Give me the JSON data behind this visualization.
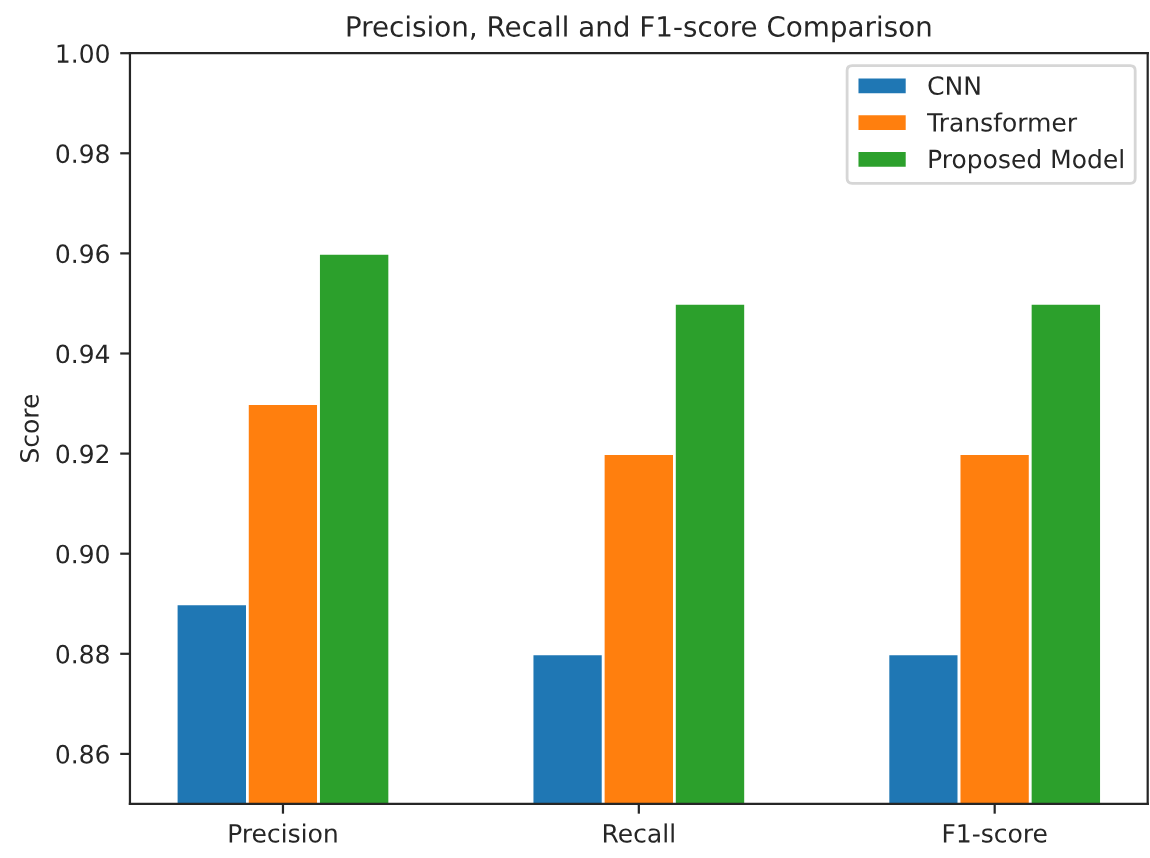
{
  "chart_data": {
    "type": "bar",
    "title": "Precision, Recall and F1-score Comparison",
    "ylabel": "Score",
    "categories": [
      "Precision",
      "Recall",
      "F1-score"
    ],
    "series": [
      {
        "name": "CNN",
        "color": "#1f77b4",
        "values": [
          0.89,
          0.88,
          0.88
        ]
      },
      {
        "name": "Transformer",
        "color": "#ff7f0e",
        "values": [
          0.93,
          0.92,
          0.92
        ]
      },
      {
        "name": "Proposed Model",
        "color": "#2ca02c",
        "values": [
          0.96,
          0.95,
          0.95
        ]
      }
    ],
    "ylim": [
      0.85,
      1.0
    ],
    "yticks": [
      0.86,
      0.88,
      {
        "value": 0.9,
        "label": "0.90"
      },
      0.92,
      0.94,
      0.96,
      0.98,
      {
        "value": 1.0,
        "label": "1.00"
      }
    ],
    "legend": "top right",
    "grid": false
  }
}
